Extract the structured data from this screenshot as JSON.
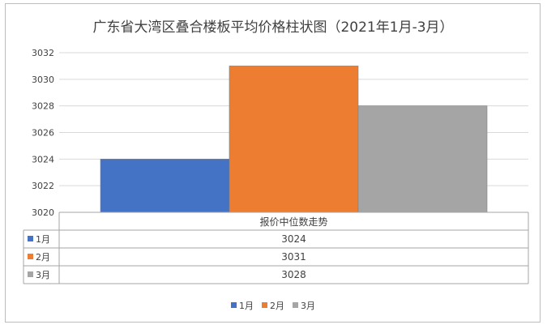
{
  "chart_data": {
    "type": "bar",
    "title": "广东省大湾区叠合楼板平均价格柱状图（2021年1月-3月）",
    "category_label": "报价中位数走势",
    "ylim": [
      3020,
      3032
    ],
    "yticks": [
      3020,
      3022,
      3024,
      3026,
      3028,
      3030,
      3032
    ],
    "grid": true,
    "legend_position": "bottom",
    "series": [
      {
        "name": "1月",
        "values": [
          3024
        ],
        "color": "#4472c4"
      },
      {
        "name": "2月",
        "values": [
          3031
        ],
        "color": "#ed7d31"
      },
      {
        "name": "3月",
        "values": [
          3028
        ],
        "color": "#a5a5a5"
      }
    ],
    "data_table": {
      "rows": [
        {
          "label": "1月",
          "value": "3024"
        },
        {
          "label": "2月",
          "value": "3031"
        },
        {
          "label": "3月",
          "value": "3028"
        }
      ]
    }
  }
}
